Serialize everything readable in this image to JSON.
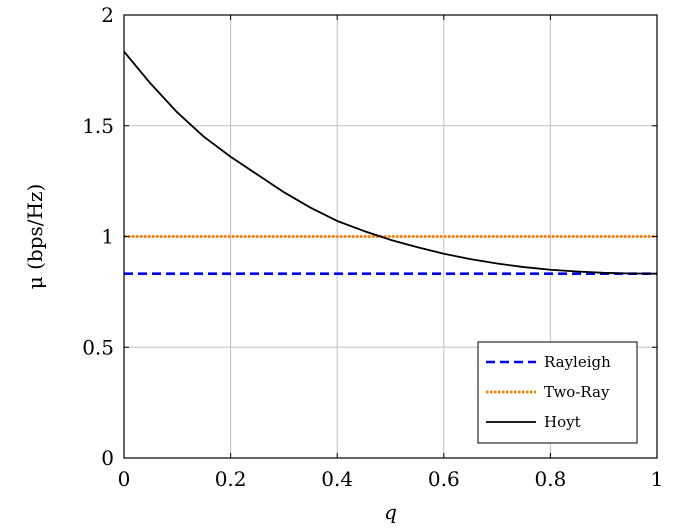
{
  "chart_data": {
    "type": "line",
    "xlabel": "q",
    "ylabel": "μ (bps/Hz)",
    "xlim": [
      0,
      1
    ],
    "ylim": [
      0,
      2
    ],
    "grid": true,
    "legend_position": "bottom-right",
    "x_ticks": [
      "0",
      "0.2",
      "0.4",
      "0.6",
      "0.8",
      "1"
    ],
    "y_ticks": [
      "0",
      "0.5",
      "1",
      "1.5",
      "2"
    ],
    "series": [
      {
        "name": "Rayleigh",
        "style": "dashed",
        "color": "#0000ff",
        "x": [
          0,
          1
        ],
        "y": [
          0.832,
          0.832
        ]
      },
      {
        "name": "Two-Ray",
        "style": "dotted",
        "color": "#ff8000",
        "x": [
          0,
          1
        ],
        "y": [
          1.0,
          1.0
        ]
      },
      {
        "name": "Hoyt",
        "style": "solid",
        "color": "#000000",
        "x": [
          0,
          0.05,
          0.1,
          0.15,
          0.2,
          0.25,
          0.3,
          0.35,
          0.4,
          0.45,
          0.5,
          0.55,
          0.6,
          0.65,
          0.7,
          0.75,
          0.8,
          0.85,
          0.9,
          0.95,
          1.0
        ],
        "y": [
          1.835,
          1.69,
          1.56,
          1.45,
          1.36,
          1.28,
          1.2,
          1.13,
          1.07,
          1.025,
          0.985,
          0.952,
          0.922,
          0.898,
          0.878,
          0.862,
          0.85,
          0.842,
          0.836,
          0.833,
          0.832
        ]
      }
    ]
  }
}
